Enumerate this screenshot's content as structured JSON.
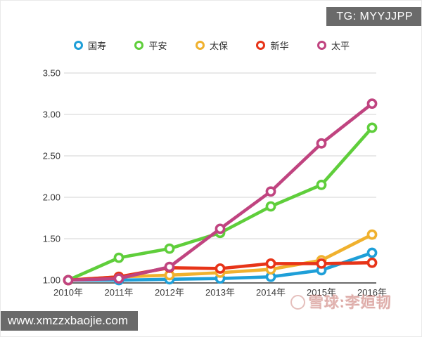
{
  "page": {
    "tg_badge": "TG: MYYJJPP",
    "url_badge": "www.xmzzxbaojie.com",
    "watermark": "雪球:李姮韧",
    "badge_bg": "#6a6a6a"
  },
  "chart_data": {
    "type": "line",
    "categories": [
      "2010年",
      "2011年",
      "2012年",
      "2013年",
      "2014年",
      "2015年",
      "2016年"
    ],
    "series": [
      {
        "name": "国寿",
        "color": "#1E9FD8",
        "values": [
          1.0,
          1.0,
          1.01,
          1.02,
          1.04,
          1.12,
          1.33
        ]
      },
      {
        "name": "平安",
        "color": "#5FCE3B",
        "values": [
          1.0,
          1.27,
          1.38,
          1.57,
          1.89,
          2.15,
          2.84
        ]
      },
      {
        "name": "太保",
        "color": "#F0B12E",
        "values": [
          1.0,
          1.04,
          1.06,
          1.09,
          1.13,
          1.24,
          1.55
        ]
      },
      {
        "name": "新华",
        "color": "#E73418",
        "values": [
          1.0,
          1.04,
          1.15,
          1.14,
          1.2,
          1.2,
          1.21
        ]
      },
      {
        "name": "太平",
        "color": "#C04480",
        "values": [
          1.0,
          1.02,
          1.16,
          1.62,
          2.07,
          2.65,
          3.13
        ]
      }
    ],
    "y_ticks": [
      "1.00",
      "1.50",
      "2.00",
      "2.50",
      "3.00",
      "3.50"
    ],
    "y_tick_values": [
      1.0,
      1.5,
      2.0,
      2.5,
      3.0,
      3.5
    ],
    "ylim": [
      1.0,
      3.5
    ],
    "title": "",
    "xlabel": "",
    "ylabel": "",
    "grid": true,
    "legend_position": "top",
    "grid_color": "#DCDCDC",
    "axis_color": "#3A3A3A",
    "tick_label_color": "#3A3A3A"
  }
}
